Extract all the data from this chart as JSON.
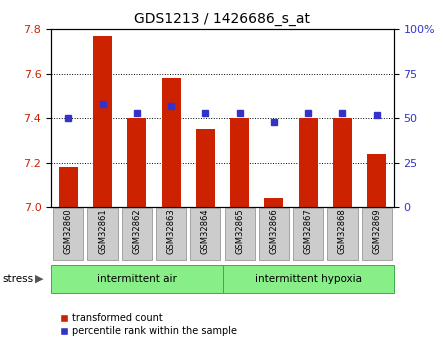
{
  "title": "GDS1213 / 1426686_s_at",
  "categories": [
    "GSM32860",
    "GSM32861",
    "GSM32862",
    "GSM32863",
    "GSM32864",
    "GSM32865",
    "GSM32866",
    "GSM32867",
    "GSM32868",
    "GSM32869"
  ],
  "bar_values": [
    7.18,
    7.77,
    7.4,
    7.58,
    7.35,
    7.4,
    7.04,
    7.4,
    7.4,
    7.24
  ],
  "percentile_values": [
    50,
    58,
    53,
    57,
    53,
    53,
    48,
    53,
    53,
    52
  ],
  "ylim_left": [
    7.0,
    7.8
  ],
  "ylim_right": [
    0,
    100
  ],
  "bar_color": "#cc2200",
  "dot_color": "#3333cc",
  "tick_color_left": "#cc2200",
  "tick_color_right": "#3333cc",
  "group1_label": "intermittent air",
  "group2_label": "intermittent hypoxia",
  "group1_indices": [
    0,
    1,
    2,
    3,
    4
  ],
  "group2_indices": [
    5,
    6,
    7,
    8,
    9
  ],
  "stress_label": "stress",
  "legend_bar_label": "transformed count",
  "legend_dot_label": "percentile rank within the sample",
  "group_bg_color": "#88ee88",
  "xtick_bg_color": "#cccccc",
  "right_tick_labels": [
    "0",
    "25",
    "50",
    "75",
    "100%"
  ]
}
